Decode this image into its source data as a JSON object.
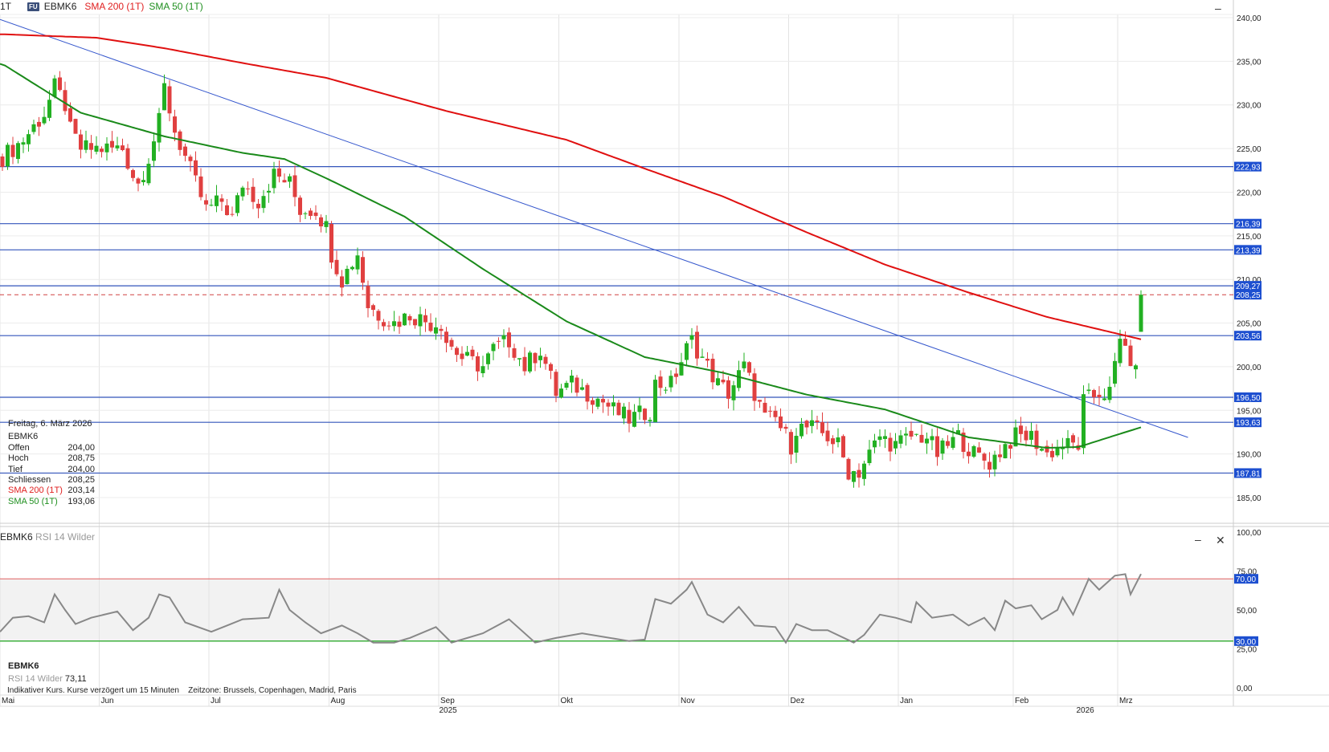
{
  "header": {
    "interval": "1T",
    "badge": "FU",
    "symbol": "EBMK6",
    "sma200_label": "SMA 200 (1T)",
    "sma50_label": "SMA 50 (1T)"
  },
  "info": {
    "date": "Freitag, 6. März 2026",
    "symbol": "EBMK6",
    "rows": [
      {
        "label": "Offen",
        "value": "204,00"
      },
      {
        "label": "Hoch",
        "value": "208,75"
      },
      {
        "label": "Tief",
        "value": "204,00"
      },
      {
        "label": "Schliessen",
        "value": "208,25"
      },
      {
        "label": "SMA 200 (1T)",
        "value": "203,14"
      },
      {
        "label": "SMA 50 (1T)",
        "value": "193,06"
      }
    ]
  },
  "rsi_panel": {
    "symbol": "EBMK6",
    "indicator": "RSI 14 Wilder",
    "value": "73,11",
    "minimize": "–",
    "close": "✕"
  },
  "main_minimize": "–",
  "footer_note": "Indikativer Kurs. Kurse verzögert um 15 Minuten    Zeitzone: Brussels, Copenhagen, Madrid, Paris",
  "colors": {
    "up": "#22b022",
    "down": "#e04040",
    "sma200": "#e01010",
    "sma50": "#1a8a1a",
    "trend": "#3355cc",
    "level": "#3355bb",
    "label_bg": "#1d4fd0"
  },
  "chart_data": {
    "type": "candlestick",
    "price_axis": {
      "min": 183,
      "max": 241,
      "ticks": [
        "240,00",
        "235,00",
        "230,00",
        "225,00",
        "220,00",
        "215,00",
        "210,00",
        "205,00",
        "200,00",
        "195,00",
        "190,00",
        "185,00"
      ]
    },
    "x_axis": {
      "days": 219,
      "months": [
        {
          "label": "Mai",
          "day": 0
        },
        {
          "label": "Jun",
          "day": 19
        },
        {
          "label": "Jul",
          "day": 40
        },
        {
          "label": "Aug",
          "day": 63
        },
        {
          "label": "Sep",
          "day": 84
        },
        {
          "label": "Okt",
          "day": 107
        },
        {
          "label": "Nov",
          "day": 130
        },
        {
          "label": "Dez",
          "day": 151
        },
        {
          "label": "Jan",
          "day": 172
        },
        {
          "label": "Feb",
          "day": 194
        },
        {
          "label": "Mrz",
          "day": 214
        }
      ],
      "years": [
        {
          "label": "2025",
          "day": 85
        },
        {
          "label": "2026",
          "day": 207
        }
      ]
    },
    "close_anchors": [
      [
        0,
        224
      ],
      [
        4,
        226
      ],
      [
        8,
        229
      ],
      [
        10,
        232
      ],
      [
        12,
        230
      ],
      [
        13,
        227
      ],
      [
        15,
        225
      ],
      [
        23,
        225
      ],
      [
        25,
        222
      ],
      [
        26,
        221
      ],
      [
        28,
        224
      ],
      [
        30,
        228
      ],
      [
        31,
        232
      ],
      [
        33,
        227
      ],
      [
        35,
        224
      ],
      [
        37,
        221
      ],
      [
        39,
        218
      ],
      [
        42,
        219
      ],
      [
        44,
        217
      ],
      [
        46,
        221
      ],
      [
        49,
        219
      ],
      [
        52,
        222
      ],
      [
        55,
        221
      ],
      [
        57,
        218
      ],
      [
        60,
        218
      ],
      [
        62,
        216
      ],
      [
        63,
        213
      ],
      [
        65,
        210
      ],
      [
        68,
        213
      ],
      [
        70,
        207
      ],
      [
        72,
        206
      ],
      [
        75,
        205
      ],
      [
        78,
        206
      ],
      [
        82,
        205
      ],
      [
        84,
        205
      ],
      [
        85,
        203
      ],
      [
        88,
        201
      ],
      [
        92,
        200
      ],
      [
        94,
        202
      ],
      [
        97,
        203
      ],
      [
        100,
        200
      ],
      [
        103,
        202
      ],
      [
        106,
        197
      ],
      [
        109,
        198
      ],
      [
        112,
        197
      ],
      [
        115,
        196
      ],
      [
        117,
        195
      ],
      [
        120,
        194
      ],
      [
        124,
        195
      ],
      [
        125,
        198
      ],
      [
        128,
        198
      ],
      [
        131,
        202
      ],
      [
        132,
        203
      ],
      [
        135,
        200
      ],
      [
        137,
        198
      ],
      [
        139,
        197
      ],
      [
        142,
        200
      ],
      [
        144,
        197
      ],
      [
        146,
        194
      ],
      [
        148,
        194
      ],
      [
        151,
        191
      ],
      [
        152,
        193
      ],
      [
        155,
        193
      ],
      [
        158,
        192
      ],
      [
        160,
        191
      ],
      [
        162,
        188
      ],
      [
        164,
        188
      ],
      [
        166,
        190
      ],
      [
        168,
        192
      ],
      [
        171,
        191
      ],
      [
        174,
        192
      ],
      [
        177,
        192
      ],
      [
        179,
        190
      ],
      [
        183,
        192
      ],
      [
        186,
        190
      ],
      [
        189,
        189
      ],
      [
        192,
        191
      ],
      [
        194,
        192
      ],
      [
        197,
        192
      ],
      [
        200,
        190
      ],
      [
        203,
        191
      ],
      [
        206,
        191
      ],
      [
        207,
        196
      ],
      [
        210,
        197
      ],
      [
        212,
        197
      ],
      [
        213,
        200
      ],
      [
        214,
        203
      ],
      [
        215,
        203
      ],
      [
        216,
        199
      ],
      [
        217,
        201
      ],
      [
        218,
        208.25
      ]
    ],
    "last_candle": {
      "open": 204.0,
      "high": 208.75,
      "low": 204.0,
      "close": 208.25
    },
    "sma200": [
      [
        0,
        238.1
      ],
      [
        18,
        237.7
      ],
      [
        31,
        236.5
      ],
      [
        46,
        234.8
      ],
      [
        62,
        233.1
      ],
      [
        85,
        229.3
      ],
      [
        108,
        226
      ],
      [
        123,
        222.7
      ],
      [
        138,
        219.5
      ],
      [
        154,
        215.4
      ],
      [
        169,
        211.7
      ],
      [
        185,
        208.5
      ],
      [
        200,
        205.7
      ],
      [
        218,
        203.14
      ]
    ],
    "sma50": [
      [
        0,
        234.7
      ],
      [
        8,
        231.7
      ],
      [
        15,
        229.1
      ],
      [
        31,
        226.4
      ],
      [
        46,
        224.5
      ],
      [
        54,
        223.8
      ],
      [
        62,
        221.6
      ],
      [
        77,
        217.2
      ],
      [
        92,
        211.2
      ],
      [
        108,
        205.2
      ],
      [
        123,
        201.1
      ],
      [
        138,
        199.3
      ],
      [
        154,
        196.8
      ],
      [
        169,
        195.1
      ],
      [
        185,
        191.9
      ],
      [
        200,
        190.7
      ],
      [
        206,
        190.8
      ],
      [
        218,
        193.06
      ]
    ],
    "trendline": [
      [
        0,
        239.8
      ],
      [
        227,
        191.9
      ]
    ],
    "levels": [
      {
        "value": 222.93,
        "label": "222,93"
      },
      {
        "value": 216.39,
        "label": "216,39"
      },
      {
        "value": 213.39,
        "label": "213,39"
      },
      {
        "value": 209.27,
        "label": "209,27"
      },
      {
        "value": 203.56,
        "label": "203,56"
      },
      {
        "value": 196.5,
        "label": "196,50"
      },
      {
        "value": 193.63,
        "label": "193,63"
      },
      {
        "value": 187.81,
        "label": "187,81"
      }
    ],
    "last_price": {
      "value": 208.25,
      "label": "208,25"
    },
    "rsi": {
      "axis": {
        "min": 0,
        "max": 100,
        "ticks": [
          {
            "v": 100,
            "l": "100,00"
          },
          {
            "v": 75,
            "l": "75,00"
          },
          {
            "v": 50,
            "l": "50,00"
          },
          {
            "v": 25,
            "l": "25,00"
          },
          {
            "v": 0,
            "l": "0,00"
          }
        ]
      },
      "overbought": {
        "value": 70,
        "label": "70,00"
      },
      "oversold": {
        "value": 30,
        "label": "30,00"
      },
      "anchors": [
        [
          0,
          36
        ],
        [
          2,
          45
        ],
        [
          5,
          46
        ],
        [
          8,
          42
        ],
        [
          10,
          60
        ],
        [
          12,
          50
        ],
        [
          14,
          41
        ],
        [
          17,
          45
        ],
        [
          22,
          49
        ],
        [
          25,
          37
        ],
        [
          28,
          45
        ],
        [
          30,
          60
        ],
        [
          32,
          58
        ],
        [
          35,
          42
        ],
        [
          40,
          36
        ],
        [
          43,
          40
        ],
        [
          46,
          44
        ],
        [
          51,
          45
        ],
        [
          53,
          63
        ],
        [
          55,
          50
        ],
        [
          58,
          42
        ],
        [
          61,
          35
        ],
        [
          65,
          40
        ],
        [
          68,
          35
        ],
        [
          71,
          29
        ],
        [
          75,
          29
        ],
        [
          78,
          32
        ],
        [
          83,
          39
        ],
        [
          86,
          29
        ],
        [
          92,
          35
        ],
        [
          97,
          44
        ],
        [
          102,
          29
        ],
        [
          106,
          32
        ],
        [
          111,
          35
        ],
        [
          120,
          30
        ],
        [
          123,
          31
        ],
        [
          125,
          57
        ],
        [
          128,
          54
        ],
        [
          131,
          63
        ],
        [
          132,
          68
        ],
        [
          135,
          47
        ],
        [
          138,
          42
        ],
        [
          141,
          52
        ],
        [
          144,
          40
        ],
        [
          148,
          39
        ],
        [
          150,
          29
        ],
        [
          152,
          41
        ],
        [
          155,
          37
        ],
        [
          158,
          37
        ],
        [
          163,
          29
        ],
        [
          165,
          34
        ],
        [
          168,
          47
        ],
        [
          171,
          45
        ],
        [
          174,
          42
        ],
        [
          175,
          55
        ],
        [
          178,
          45
        ],
        [
          182,
          47
        ],
        [
          185,
          40
        ],
        [
          188,
          45
        ],
        [
          190,
          37
        ],
        [
          192,
          56
        ],
        [
          194,
          51
        ],
        [
          197,
          53
        ],
        [
          199,
          44
        ],
        [
          202,
          50
        ],
        [
          203,
          58
        ],
        [
          205,
          47
        ],
        [
          208,
          70
        ],
        [
          210,
          63
        ],
        [
          213,
          72
        ],
        [
          215,
          73
        ],
        [
          216,
          60
        ],
        [
          218,
          73.11
        ]
      ]
    }
  }
}
